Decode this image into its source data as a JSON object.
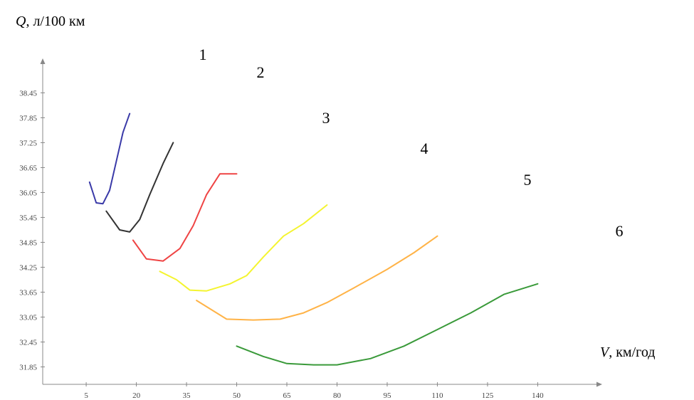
{
  "chart_data": {
    "type": "line",
    "ylabel_var": "Q",
    "ylabel_unit": ", л/100 км",
    "xlabel_var": "V",
    "xlabel_unit": ", км/год",
    "x_ticks": [
      5,
      20,
      35,
      50,
      65,
      80,
      95,
      110,
      125,
      140
    ],
    "x_tick_labels": [
      "5",
      "20",
      "35",
      "50",
      "65",
      "80",
      "95",
      "110",
      "125",
      "140"
    ],
    "y_ticks": [
      31.85,
      32.45,
      33.05,
      33.65,
      34.25,
      34.85,
      35.45,
      36.05,
      36.65,
      37.25,
      37.85,
      38.45
    ],
    "y_tick_labels": [
      "31.85",
      "32.45",
      "33.05",
      "33.65",
      "34.25",
      "34.85",
      "35.45",
      "36.05",
      "36.65",
      "37.25",
      "37.85",
      "38.45"
    ],
    "xlim": [
      -8,
      158
    ],
    "ylim": [
      31.43,
      39.28
    ],
    "grid": false,
    "legend": "none",
    "series": [
      {
        "label": "1",
        "color": "#3a3aa8",
        "x": [
          6,
          8,
          10,
          12,
          14,
          16,
          18
        ],
        "y": [
          36.3,
          35.8,
          35.78,
          36.1,
          36.8,
          37.5,
          37.95
        ]
      },
      {
        "label": "2",
        "color": "#333333",
        "x": [
          11,
          15,
          18,
          21,
          24,
          28,
          31
        ],
        "y": [
          35.6,
          35.15,
          35.1,
          35.4,
          36.0,
          36.75,
          37.25
        ]
      },
      {
        "label": "3",
        "color": "#ef4444",
        "x": [
          19,
          23,
          28,
          33,
          37,
          41,
          45,
          50
        ],
        "y": [
          34.9,
          34.45,
          34.4,
          34.7,
          35.25,
          36.0,
          36.5,
          36.5
        ]
      },
      {
        "label": "4",
        "color": "#f4f430",
        "x": [
          27,
          32,
          36,
          41,
          48,
          53,
          58,
          64,
          70,
          77
        ],
        "y": [
          34.15,
          33.95,
          33.7,
          33.68,
          33.85,
          34.05,
          34.5,
          35.0,
          35.3,
          35.75
        ]
      },
      {
        "label": "5",
        "color": "#ffb347",
        "x": [
          38,
          47,
          55,
          63,
          70,
          77,
          85,
          95,
          103,
          110
        ],
        "y": [
          33.45,
          33.0,
          32.98,
          33.0,
          33.15,
          33.4,
          33.75,
          34.2,
          34.6,
          35.0
        ]
      },
      {
        "label": "6",
        "color": "#3a9a3a",
        "x": [
          50,
          58,
          65,
          73,
          80,
          90,
          100,
          110,
          120,
          130,
          140
        ],
        "y": [
          32.35,
          32.1,
          31.93,
          31.9,
          31.9,
          32.05,
          32.35,
          32.75,
          33.15,
          33.6,
          33.85
        ]
      }
    ]
  }
}
